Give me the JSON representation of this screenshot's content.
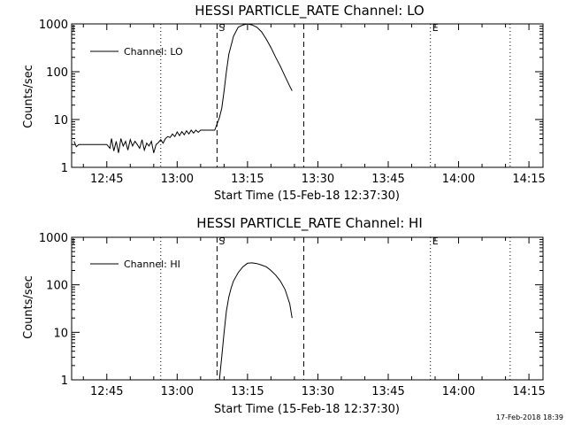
{
  "timestamp": "17-Feb-2018 18:39",
  "chart_data": [
    {
      "type": "line",
      "title": "HESSI PARTICLE_RATE Channel: LO",
      "xlabel": "Start Time (15-Feb-18 12:37:30)",
      "ylabel": "Counts/sec",
      "y_scale": "log",
      "ylim": [
        1,
        1000
      ],
      "xlim": [
        "12:37:30",
        "14:18:00"
      ],
      "x_ticks": [
        "12:45",
        "13:00",
        "13:15",
        "13:30",
        "13:45",
        "14:00",
        "14:15"
      ],
      "y_ticks": [
        "1",
        "10",
        "100",
        "1000"
      ],
      "legend": {
        "label": "Channel: LO",
        "position": "top-left"
      },
      "markers": [
        {
          "time": "12:56:30",
          "style": "dotted",
          "label": ""
        },
        {
          "time": "13:08:30",
          "style": "dashed",
          "label": "S"
        },
        {
          "time": "13:27:00",
          "style": "dashed",
          "label": ""
        },
        {
          "time": "13:54:00",
          "style": "dotted",
          "label": "E"
        },
        {
          "time": "14:11:00",
          "style": "dotted",
          "label": ""
        }
      ],
      "series": [
        {
          "name": "Channel: LO",
          "x": [
            "12:38:00",
            "12:38:30",
            "12:39:00",
            "12:40:00",
            "12:41:00",
            "12:42:00",
            "12:43:00",
            "12:44:00",
            "12:45:00",
            "12:45:40",
            "12:46:00",
            "12:46:30",
            "12:47:00",
            "12:47:30",
            "12:48:00",
            "12:48:30",
            "12:49:00",
            "12:49:30",
            "12:50:00",
            "12:50:30",
            "12:51:00",
            "12:51:30",
            "12:52:00",
            "12:52:30",
            "12:53:00",
            "12:53:30",
            "12:54:00",
            "12:54:30",
            "12:55:00",
            "12:55:30",
            "12:56:00",
            "12:56:30",
            "12:57:00",
            "12:57:30",
            "12:58:00",
            "12:58:30",
            "12:59:00",
            "12:59:30",
            "13:00:00",
            "13:00:30",
            "13:01:00",
            "13:01:30",
            "13:02:00",
            "13:02:30",
            "13:03:00",
            "13:03:30",
            "13:04:00",
            "13:04:30",
            "13:05:00",
            "13:06:00",
            "13:07:00",
            "13:08:00",
            "13:08:30",
            "13:09:00",
            "13:09:30",
            "13:10:00",
            "13:10:30",
            "13:11:00",
            "13:12:00",
            "13:13:00",
            "13:14:00",
            "13:15:00",
            "13:16:00",
            "13:17:00",
            "13:18:00",
            "13:19:00",
            "13:20:00",
            "13:21:00",
            "13:22:00",
            "13:23:00",
            "13:24:00",
            "13:24:30"
          ],
          "y": [
            3.5,
            2.7,
            3,
            3,
            3,
            3,
            3,
            3,
            3,
            2.5,
            4,
            2.2,
            3.5,
            2,
            4,
            2.8,
            3.5,
            2.3,
            3.8,
            2.8,
            3.5,
            3,
            2.5,
            3.8,
            2.3,
            3.2,
            2.8,
            3.5,
            2,
            3,
            3.3,
            3.8,
            3.2,
            4,
            4.4,
            4.2,
            5,
            4.4,
            5.5,
            4.6,
            5.6,
            4.8,
            5.8,
            5,
            6,
            5.2,
            6,
            5.4,
            6,
            6,
            6,
            6,
            8,
            11,
            17,
            40,
            100,
            230,
            550,
            850,
            950,
            1000,
            950,
            850,
            680,
            480,
            320,
            200,
            130,
            80,
            50,
            40
          ]
        }
      ]
    },
    {
      "type": "line",
      "title": "HESSI PARTICLE_RATE Channel: HI",
      "xlabel": "Start Time (15-Feb-18 12:37:30)",
      "ylabel": "Counts/sec",
      "y_scale": "log",
      "ylim": [
        1,
        1000
      ],
      "xlim": [
        "12:37:30",
        "14:18:00"
      ],
      "x_ticks": [
        "12:45",
        "13:00",
        "13:15",
        "13:30",
        "13:45",
        "14:00",
        "14:15"
      ],
      "y_ticks": [
        "1",
        "10",
        "100",
        "1000"
      ],
      "legend": {
        "label": "Channel: HI",
        "position": "top-left"
      },
      "markers": [
        {
          "time": "12:56:30",
          "style": "dotted",
          "label": ""
        },
        {
          "time": "13:08:30",
          "style": "dashed",
          "label": "S"
        },
        {
          "time": "13:27:00",
          "style": "dashed",
          "label": ""
        },
        {
          "time": "13:54:00",
          "style": "dotted",
          "label": "E"
        },
        {
          "time": "14:11:00",
          "style": "dotted",
          "label": ""
        }
      ],
      "series": [
        {
          "name": "Channel: HI",
          "x": [
            "13:09:00",
            "13:09:30",
            "13:10:00",
            "13:10:30",
            "13:11:00",
            "13:11:30",
            "13:12:00",
            "13:13:00",
            "13:14:00",
            "13:15:00",
            "13:16:00",
            "13:17:00",
            "13:18:00",
            "13:19:00",
            "13:20:00",
            "13:21:00",
            "13:22:00",
            "13:23:00",
            "13:24:00",
            "13:24:30"
          ],
          "y": [
            1,
            3,
            10,
            28,
            55,
            85,
            120,
            180,
            240,
            285,
            290,
            280,
            260,
            240,
            200,
            160,
            120,
            80,
            40,
            20
          ]
        }
      ]
    }
  ]
}
